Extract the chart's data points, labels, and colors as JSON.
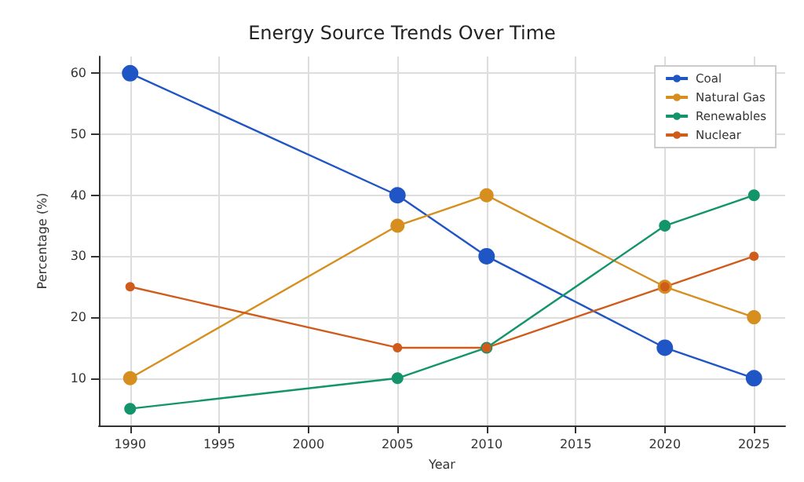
{
  "chart_data": {
    "type": "line",
    "title": "Energy Source Trends Over Time",
    "xlabel": "Year",
    "ylabel": "Percentage (%)",
    "x": [
      1990,
      2005,
      2010,
      2020,
      2025
    ],
    "series": [
      {
        "name": "Coal",
        "color": "#1f55c4",
        "values": [
          60,
          40,
          30,
          15,
          10
        ]
      },
      {
        "name": "Natural Gas",
        "color": "#d68f1f",
        "values": [
          10,
          35,
          40,
          25,
          20
        ]
      },
      {
        "name": "Renewables",
        "color": "#14946a",
        "values": [
          5,
          10,
          15,
          35,
          40
        ]
      },
      {
        "name": "Nuclear",
        "color": "#d05c1c",
        "values": [
          25,
          15,
          15,
          25,
          30
        ]
      }
    ],
    "xlim": [
      1988.25,
      2026.75
    ],
    "xticks": [
      1990,
      1995,
      2000,
      2005,
      2010,
      2015,
      2020,
      2025
    ],
    "ylim": [
      2.25,
      62.75
    ],
    "yticks": [
      10,
      20,
      30,
      40,
      50,
      60
    ],
    "grid": true,
    "legend": "top right",
    "marker": "circle",
    "line_style": "solid"
  }
}
